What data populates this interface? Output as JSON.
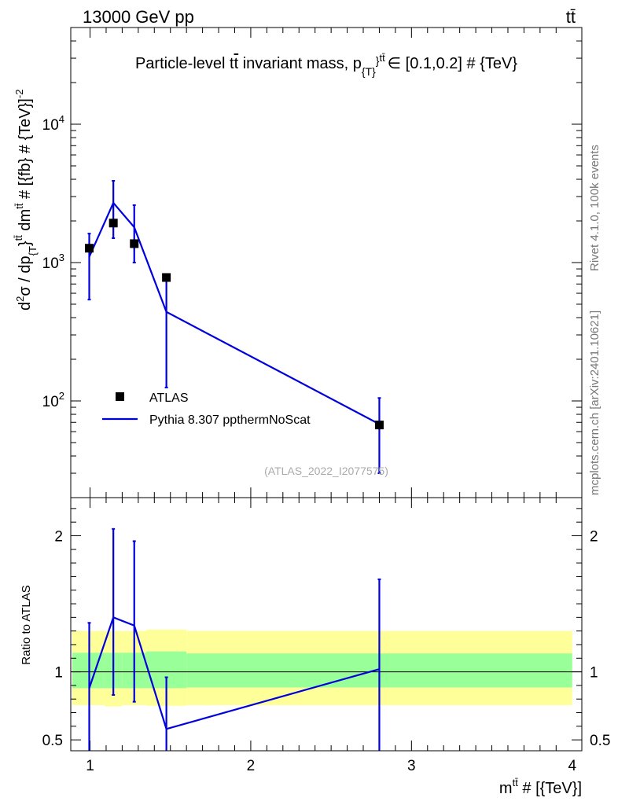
{
  "header": {
    "energy_label": "13000 GeV pp",
    "process_label": "tt̄"
  },
  "side_labels": {
    "rivet": "Rivet 4.1.0,  100k events",
    "mcplots": "mcplots.cern.ch [arXiv:2401.10621]"
  },
  "chart_data": [
    {
      "type": "scatter",
      "panel": "main",
      "title": "Particle-level tt̄ invariant mass, p_{T}^{tt̄} ∈ [0.1,0.2] # {TeV}",
      "title_parts": {
        "prefix": "Particle-level t",
        "tbar": "t",
        "mid": " invariant mass, p",
        "sub": "{T}",
        "brace": "}",
        "sup": "tt̄",
        "suffix": "∈ [0.1,0.2] # {TeV}"
      },
      "ylabel": "d²σ / dp_{T}^{tt̄} dm^{tt̄} # [{fb} # {TeV}⁻²]",
      "ylabel_parts": {
        "a": "d",
        "a_sup": "2",
        "b": "σ / dp",
        "b_sub": "{T",
        "c": "}",
        "c_sup": "tt̄",
        "d": " dm",
        "d_sup": "tt̄",
        "e": " # [{fb} # {TeV}]",
        "e_sup": "-2"
      },
      "yscale": "log",
      "ylim": [
        20,
        50000
      ],
      "xlim": [
        0.88,
        4.06
      ],
      "yticks": [
        {
          "value": 100,
          "base": "10",
          "exp": "2"
        },
        {
          "value": 1000,
          "base": "10",
          "exp": "3"
        },
        {
          "value": 10000,
          "base": "10",
          "exp": "4"
        }
      ],
      "legend_position": "lower-left",
      "watermark": "(ATLAS_2022_I2077575)",
      "series": [
        {
          "name": "ATLAS",
          "style": "markers",
          "color": "#000000",
          "x": [
            0.995,
            1.145,
            1.275,
            1.475,
            2.8
          ],
          "y": [
            1270,
            1930,
            1370,
            780,
            67
          ]
        },
        {
          "name": "Pythia 8.307 ppthermNoScat",
          "style": "line",
          "color": "#0000dd",
          "x": [
            0.995,
            1.145,
            1.275,
            1.475,
            2.8
          ],
          "y": [
            1100,
            2700,
            1800,
            440,
            68
          ],
          "err_low": [
            540,
            1500,
            1000,
            125,
            30
          ],
          "err_high": [
            1620,
            3900,
            2600,
            740,
            105
          ]
        }
      ]
    },
    {
      "type": "line",
      "panel": "ratio",
      "ylabel": "Ratio to ATLAS",
      "xlabel": "m^{tt̄} # [{TeV}]",
      "xlabel_parts": {
        "a": "m",
        "a_sup": "tt̄",
        "b": " # [{TeV}]"
      },
      "ylim": [
        0.42,
        2.28
      ],
      "xlim": [
        0.88,
        4.06
      ],
      "yticks": [
        {
          "value": 0.5,
          "label": "0.5"
        },
        {
          "value": 1,
          "label": "1"
        },
        {
          "value": 2,
          "label": "2"
        }
      ],
      "xticks": [
        {
          "value": 1,
          "label": "1"
        },
        {
          "value": 2,
          "label": "2"
        },
        {
          "value": 3,
          "label": "3"
        },
        {
          "value": 4,
          "label": "4"
        }
      ],
      "bands": {
        "edges": [
          0.89,
          1.09,
          1.2,
          1.35,
          1.6,
          4.0
        ],
        "inner_low": [
          0.88,
          0.88,
          0.88,
          0.88,
          0.885
        ],
        "inner_high": [
          1.14,
          1.14,
          1.14,
          1.15,
          1.135
        ],
        "outer_low": [
          0.755,
          0.745,
          0.755,
          0.75,
          0.755
        ],
        "outer_high": [
          1.3,
          1.3,
          1.3,
          1.31,
          1.3
        ],
        "inner_color": "#99ff99",
        "outer_color": "#ffff99"
      },
      "series": [
        {
          "name": "Pythia 8.307 ppthermNoScat",
          "color": "#0000dd",
          "x": [
            0.995,
            1.145,
            1.275,
            1.475,
            2.8
          ],
          "y": [
            0.88,
            1.4,
            1.34,
            0.58,
            1.02
          ],
          "err_low": [
            0.38,
            0.83,
            0.78,
            0.34,
            0.39
          ],
          "err_high": [
            1.36,
            2.05,
            1.96,
            0.96,
            1.68
          ]
        }
      ]
    }
  ]
}
